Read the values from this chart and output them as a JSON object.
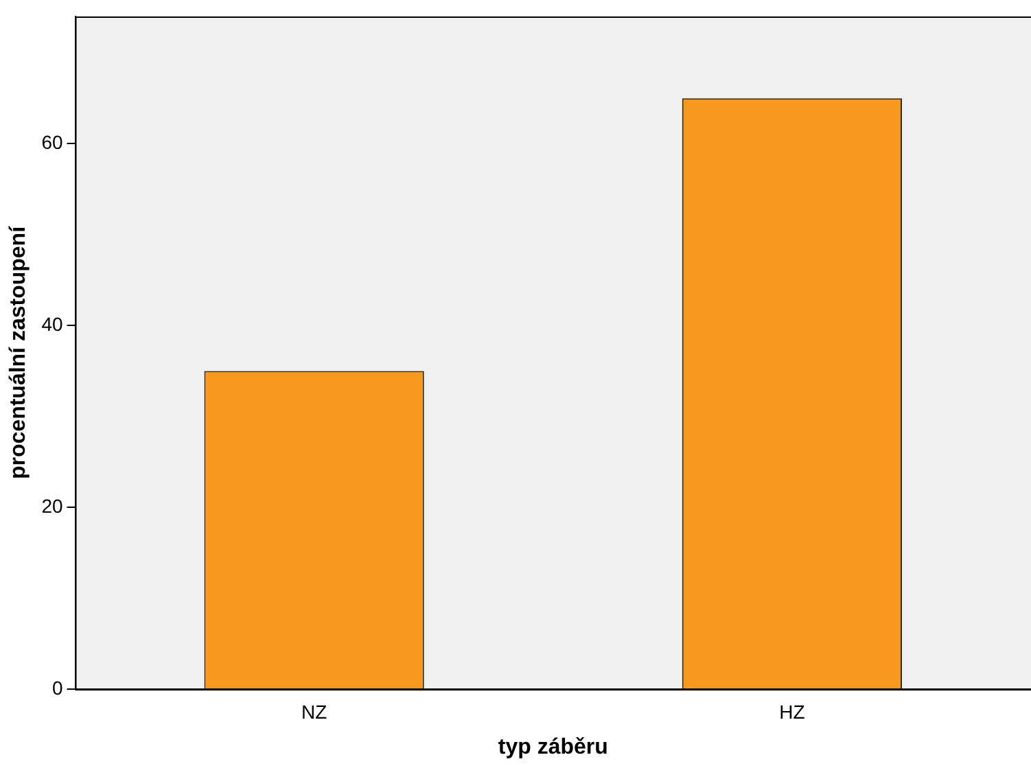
{
  "chart_data": {
    "type": "bar",
    "xlabel": "typ záběru",
    "ylabel": "procentuální zastoupení",
    "categories": [
      "NZ",
      "HZ"
    ],
    "values": [
      35,
      65
    ],
    "color": "#f7991f",
    "ylim": [
      0,
      74
    ],
    "yticks": [
      0,
      20,
      40,
      60
    ],
    "grid": false,
    "legend": false
  }
}
